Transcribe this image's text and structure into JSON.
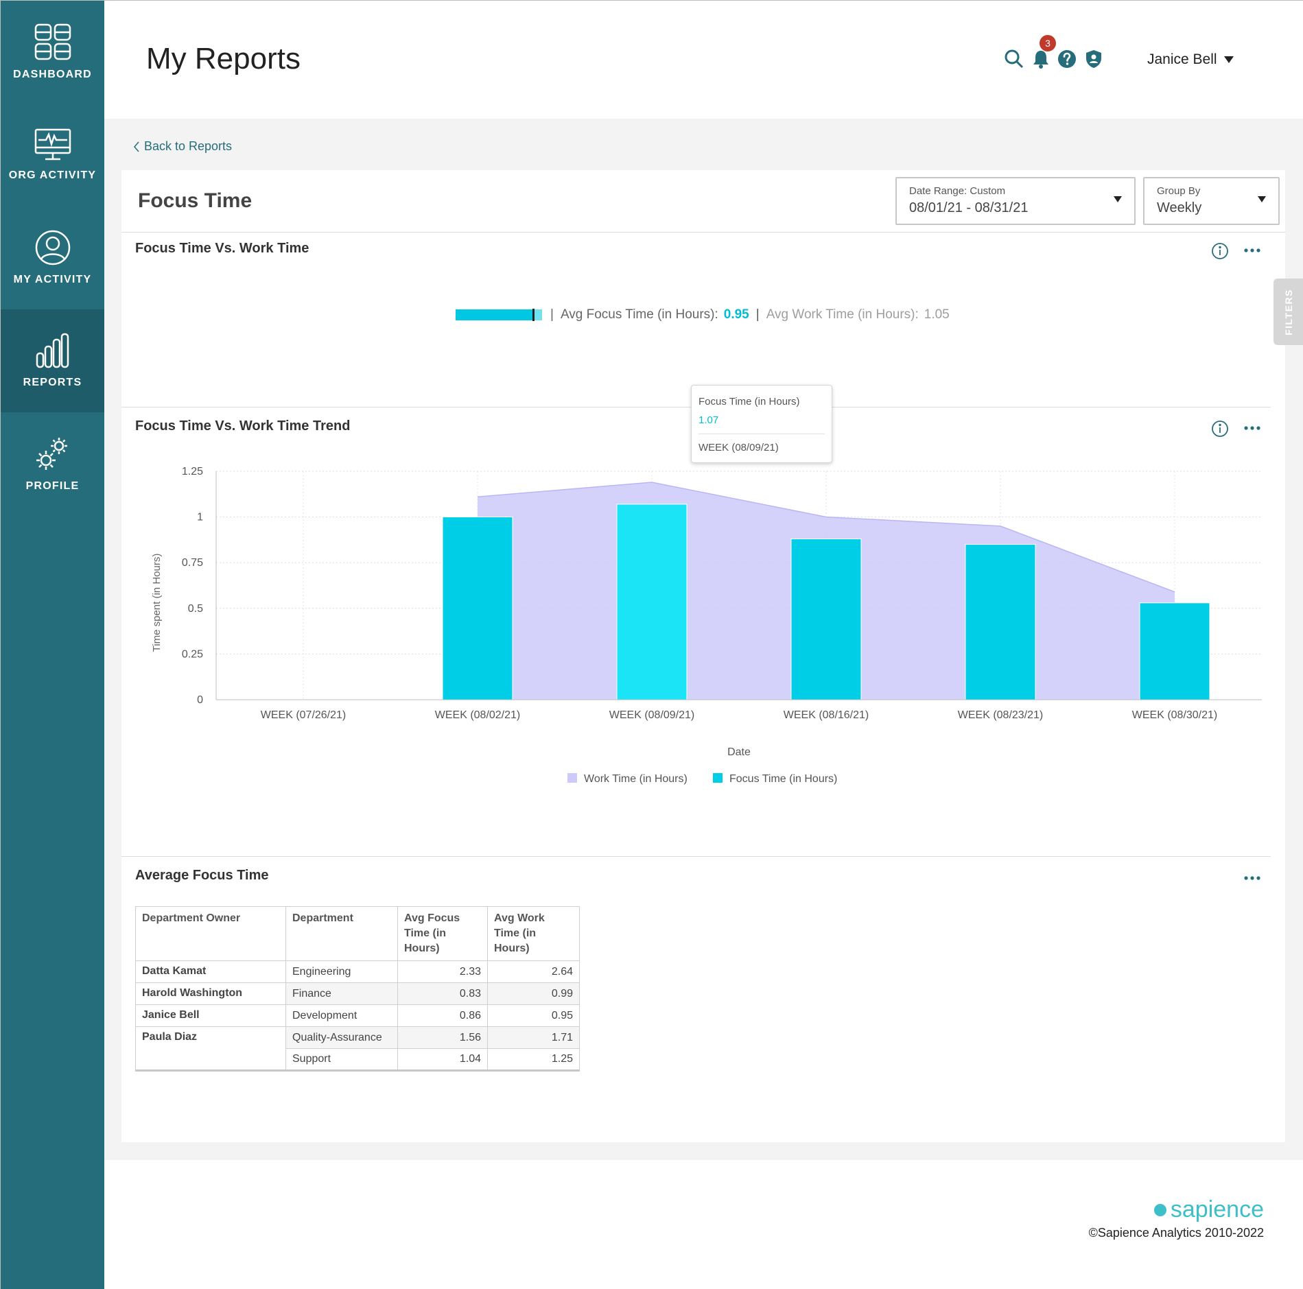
{
  "sidebar": {
    "items": [
      {
        "label": "DASHBOARD",
        "icon": "dashboard-icon"
      },
      {
        "label": "ORG ACTIVITY",
        "icon": "monitor-activity-icon"
      },
      {
        "label": "MY ACTIVITY",
        "icon": "user-icon"
      },
      {
        "label": "REPORTS",
        "icon": "bar-chart-icon",
        "active": true
      },
      {
        "label": "PROFILE",
        "icon": "gears-icon"
      }
    ]
  },
  "header": {
    "title": "My Reports",
    "notification_count": "3",
    "user_name": "Janice Bell",
    "icons": [
      "search-icon",
      "bell-icon",
      "help-icon",
      "shield-icon"
    ]
  },
  "nav": {
    "back_label": "Back to Reports"
  },
  "report": {
    "title": "Focus Time",
    "date_range": {
      "label": "Date Range: Custom",
      "value": "08/01/21 - 08/31/21"
    },
    "group_by": {
      "label": "Group By",
      "value": "Weekly"
    },
    "filters_label": "FILTERS"
  },
  "summary": {
    "title": "Focus Time Vs. Work Time",
    "avg_focus_label": "Avg Focus Time (in Hours):",
    "avg_focus_value": "0.95",
    "avg_work_label": "Avg Work Time (in Hours):",
    "avg_work_value": "1.05",
    "separator": "|"
  },
  "trend": {
    "title": "Focus Time Vs. Work Time Trend",
    "tooltip": {
      "label": "Focus Time (in Hours)",
      "value": "1.07",
      "week": "WEEK (08/09/21)"
    }
  },
  "chart_data": {
    "type": "bar",
    "categories": [
      "WEEK (07/26/21)",
      "WEEK (08/02/21)",
      "WEEK (08/09/21)",
      "WEEK (08/16/21)",
      "WEEK (08/23/21)",
      "WEEK (08/30/21)"
    ],
    "series": [
      {
        "name": "Work Time (in Hours)",
        "type": "area",
        "values": [
          null,
          1.11,
          1.19,
          1.0,
          0.95,
          0.59
        ],
        "color": "#cccaf9"
      },
      {
        "name": "Focus Time (in Hours)",
        "type": "bar",
        "values": [
          null,
          1.0,
          1.07,
          0.88,
          0.85,
          0.53
        ],
        "color": "#00cde6"
      }
    ],
    "highlight_color": "#1be4f7",
    "xlabel": "Date",
    "ylabel": "Time spent (in Hours)",
    "ylim": [
      0,
      1.25
    ],
    "yticks": [
      "0",
      "0.25",
      "0.5",
      "0.75",
      "1",
      "1.25"
    ],
    "grid": true,
    "legend_position": "bottom"
  },
  "average": {
    "title": "Average Focus Time",
    "columns": [
      "Department Owner",
      "Department",
      "Avg Focus Time (in Hours)",
      "Avg Work Time (in Hours)"
    ],
    "rows": [
      {
        "owner": "Datta Kamat",
        "department": "Engineering",
        "focus": "2.33",
        "work": "2.64"
      },
      {
        "owner": "Harold Washington",
        "department": "Finance",
        "focus": "0.83",
        "work": "0.99"
      },
      {
        "owner": "Janice Bell",
        "department": "Development",
        "focus": "0.86",
        "work": "0.95"
      },
      {
        "owner": "Paula Diaz",
        "department": "Quality-Assurance",
        "focus": "1.56",
        "work": "1.71"
      },
      {
        "owner": "",
        "department": "Support",
        "focus": "1.04",
        "work": "1.25"
      }
    ]
  },
  "footer": {
    "brand": "sapience",
    "copyright": "©Sapience Analytics 2010-2022"
  }
}
